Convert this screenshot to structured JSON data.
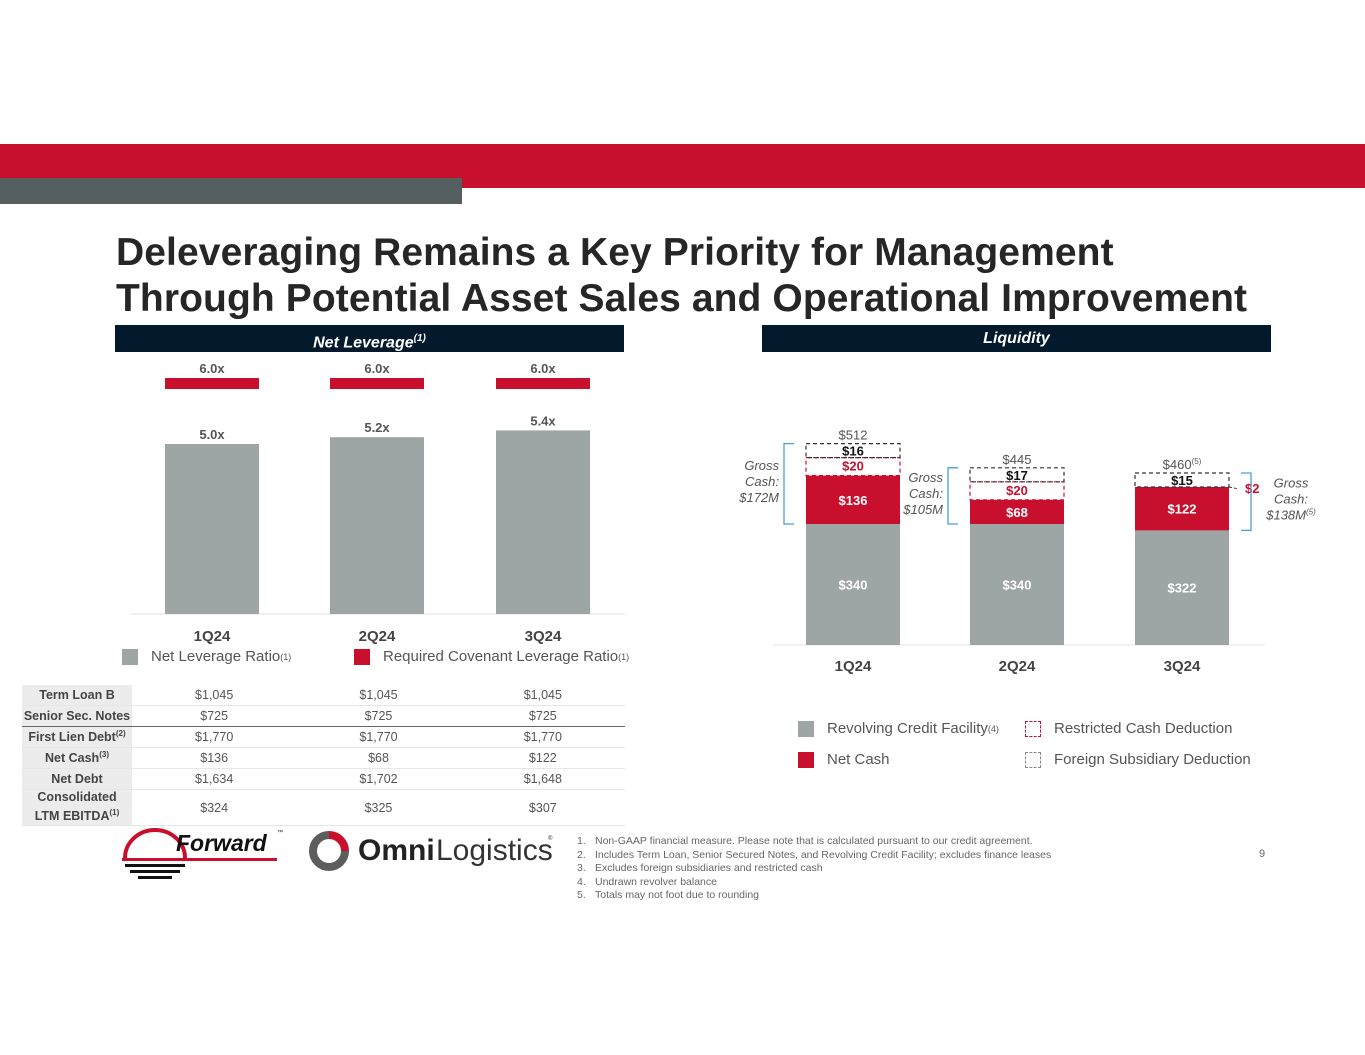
{
  "title_line1": "Deleveraging Remains a Key Priority for Management",
  "title_line2": "Through Potential Asset Sales and Operational Improvement",
  "colors": {
    "brand_red": "#c8102e",
    "gray_bar": "#9ea5a5",
    "navy": "#031a2c",
    "bracket_blue": "#4a9fd8"
  },
  "net_leverage": {
    "header": "Net Leverage",
    "header_sup": "(1)",
    "legend": [
      {
        "label": "Net Leverage Ratio",
        "sup": "(1)",
        "color": "#9ea5a5"
      },
      {
        "label": "Required Covenant Leverage Ratio",
        "sup": "(1)",
        "color": "#c8102e"
      }
    ]
  },
  "liquidity": {
    "header": "Liquidity",
    "legend": [
      {
        "label": "Revolving Credit Facility",
        "sup": "(4)",
        "style": "solid-gray"
      },
      {
        "label": "Restricted Cash Deduction",
        "sup": "",
        "style": "dashed-red"
      },
      {
        "label": "Net Cash",
        "sup": "",
        "style": "solid-red"
      },
      {
        "label": "Foreign Subsidiary Deduction",
        "sup": "",
        "style": "dashed-gray"
      }
    ]
  },
  "chart_data": [
    {
      "type": "bar",
      "title": "Net Leverage(1)",
      "categories": [
        "1Q24",
        "2Q24",
        "3Q24"
      ],
      "series": [
        {
          "name": "Net Leverage Ratio(1)",
          "values": [
            5.0,
            5.2,
            5.4
          ],
          "labels": [
            "5.0x",
            "5.2x",
            "5.4x"
          ]
        },
        {
          "name": "Required Covenant Leverage Ratio(1)",
          "values": [
            6.0,
            6.0,
            6.0
          ],
          "labels": [
            "6.0x",
            "6.0x",
            "6.0x"
          ],
          "render": "marker"
        }
      ],
      "ylim": [
        0,
        7.2
      ],
      "grid": false,
      "legend": "bottom"
    },
    {
      "type": "bar",
      "stacked": true,
      "title": "Liquidity",
      "categories": [
        "1Q24",
        "2Q24",
        "3Q24"
      ],
      "series": [
        {
          "name": "Revolving Credit Facility(4)",
          "values": [
            340,
            340,
            322
          ],
          "labels": [
            "$340",
            "$340",
            "$322"
          ]
        },
        {
          "name": "Net Cash",
          "values": [
            136,
            68,
            122
          ],
          "labels": [
            "$136",
            "$68",
            "$122"
          ]
        },
        {
          "name": "Restricted Cash Deduction",
          "values": [
            20,
            20,
            2
          ],
          "labels": [
            "$20",
            "$20",
            "$2"
          ]
        },
        {
          "name": "Foreign Subsidiary Deduction",
          "values": [
            16,
            17,
            15
          ],
          "labels": [
            "$16",
            "$17",
            "$15"
          ]
        }
      ],
      "totals": [
        "$512",
        "$445",
        "$460"
      ],
      "total_sups": [
        "",
        "",
        "(5)"
      ],
      "annotations": [
        {
          "category": "1Q24",
          "text": [
            "Gross",
            "Cash:",
            "$172M"
          ],
          "sup": "",
          "side": "left"
        },
        {
          "category": "2Q24",
          "text": [
            "Gross",
            "Cash:",
            "$105M"
          ],
          "sup": "",
          "side": "left"
        },
        {
          "category": "3Q24",
          "text": [
            "Gross",
            "Cash:",
            "$138M"
          ],
          "sup": "(5)",
          "side": "right"
        }
      ],
      "ylim": [
        0,
        530
      ],
      "grid": false,
      "legend": "bottom"
    }
  ],
  "debt_table": {
    "rows": [
      {
        "label": "Term Loan B",
        "sup": "",
        "values": [
          "$1,045",
          "$1,045",
          "$1,045"
        ]
      },
      {
        "label": "Senior Sec. Notes",
        "sup": "",
        "values": [
          "$725",
          "$725",
          "$725"
        ]
      },
      {
        "label": "First Lien Debt",
        "sup": "(2)",
        "values": [
          "$1,770",
          "$1,770",
          "$1,770"
        ]
      },
      {
        "label": "Net Cash",
        "sup": "(3)",
        "values": [
          "$136",
          "$68",
          "$122"
        ]
      },
      {
        "label": "Net Debt",
        "sup": "",
        "values": [
          "$1,634",
          "$1,702",
          "$1,648"
        ]
      },
      {
        "label": "Consolidated LTM EBITDA",
        "label_line1": "Consolidated",
        "label_line2": "LTM EBITDA",
        "sup": "(1)",
        "values": [
          "$324",
          "$325",
          "$307"
        ]
      }
    ]
  },
  "logos": {
    "forward": "Forward",
    "forward_tm": "™",
    "omni_bold": "Omni",
    "omni_light": "Logistics",
    "omni_reg": "®"
  },
  "footnotes": [
    {
      "n": "1.",
      "text": "Non-GAAP financial measure. Please note that is calculated pursuant to our credit agreement."
    },
    {
      "n": "2.",
      "text": "Includes Term Loan, Senior Secured Notes, and Revolving Credit Facility; excludes finance leases"
    },
    {
      "n": "3.",
      "text": "Excludes foreign subsidiaries and restricted cash"
    },
    {
      "n": "4.",
      "text": "Undrawn revolver balance"
    },
    {
      "n": "5.",
      "text": "Totals may not foot due to rounding"
    }
  ],
  "page_number": "9"
}
